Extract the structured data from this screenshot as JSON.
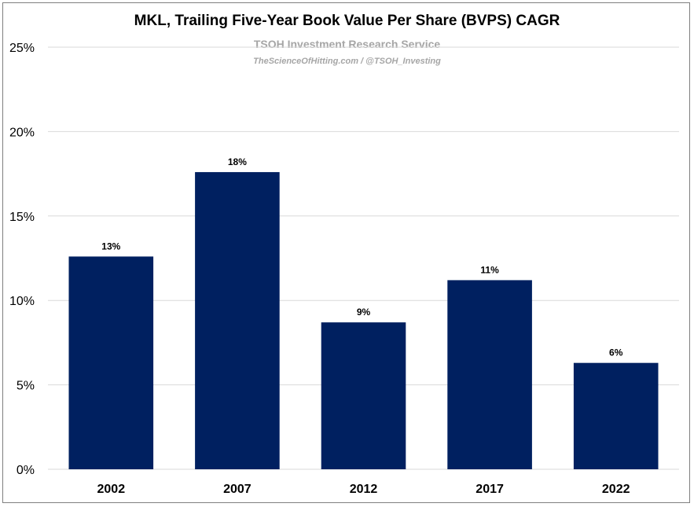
{
  "colors": {
    "bar": "#002060",
    "grid": "#d9d9d9",
    "watermark": "#a6a6a6"
  },
  "watermark": {
    "line1": "TSOH Investment Research Service",
    "line2": "TheScienceOfHitting.com / @TSOH_Investing"
  },
  "chart_data": {
    "type": "bar",
    "title": "MKL, Trailing Five-Year Book Value Per Share (BVPS) CAGR",
    "xlabel": "",
    "ylabel": "",
    "categories": [
      "2002",
      "2007",
      "2012",
      "2017",
      "2022"
    ],
    "values": [
      12.6,
      17.6,
      8.7,
      11.2,
      6.3
    ],
    "data_labels": [
      "13%",
      "18%",
      "9%",
      "11%",
      "6%"
    ],
    "ylim": [
      0,
      25
    ],
    "yticks": [
      0,
      5,
      10,
      15,
      20,
      25
    ],
    "ytick_labels": [
      "0%",
      "5%",
      "10%",
      "15%",
      "20%",
      "25%"
    ],
    "grid": true,
    "legend": "none"
  }
}
